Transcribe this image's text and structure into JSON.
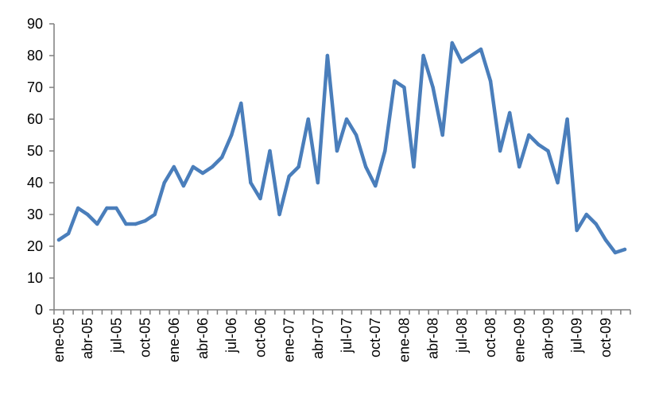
{
  "chart_data": {
    "type": "line",
    "title": "",
    "xlabel": "",
    "ylabel": "",
    "ylim": [
      0,
      90
    ],
    "yticks": [
      0,
      10,
      20,
      30,
      40,
      50,
      60,
      70,
      80,
      90
    ],
    "grid": false,
    "legend": "none",
    "line_color": "#4a7ebb",
    "axis_color": "#7f7f7f",
    "x_tick_labels": [
      "ene-05",
      "abr-05",
      "jul-05",
      "oct-05",
      "ene-06",
      "abr-06",
      "jul-06",
      "oct-06",
      "ene-07",
      "abr-07",
      "jul-07",
      "oct-07",
      "ene-08",
      "abr-08",
      "jul-08",
      "oct-08",
      "ene-09",
      "abr-09",
      "jul-09",
      "oct-09"
    ],
    "categories": [
      "ene-05",
      "feb-05",
      "mar-05",
      "abr-05",
      "may-05",
      "jun-05",
      "jul-05",
      "ago-05",
      "sep-05",
      "oct-05",
      "nov-05",
      "dic-05",
      "ene-06",
      "feb-06",
      "mar-06",
      "abr-06",
      "may-06",
      "jun-06",
      "jul-06",
      "ago-06",
      "sep-06",
      "oct-06",
      "nov-06",
      "dic-06",
      "ene-07",
      "feb-07",
      "mar-07",
      "abr-07",
      "may-07",
      "jun-07",
      "jul-07",
      "ago-07",
      "sep-07",
      "oct-07",
      "nov-07",
      "dic-07",
      "ene-08",
      "feb-08",
      "mar-08",
      "abr-08",
      "may-08",
      "jun-08",
      "jul-08",
      "ago-08",
      "sep-08",
      "oct-08",
      "nov-08",
      "dic-08",
      "ene-09",
      "feb-09",
      "mar-09",
      "abr-09",
      "may-09",
      "jun-09",
      "jul-09",
      "ago-09",
      "sep-09",
      "oct-09",
      "nov-09",
      "dic-09"
    ],
    "series": [
      {
        "values": [
          22,
          24,
          32,
          30,
          27,
          32,
          32,
          27,
          27,
          28,
          30,
          40,
          45,
          39,
          45,
          43,
          45,
          48,
          55,
          65,
          40,
          35,
          50,
          30,
          42,
          45,
          60,
          40,
          80,
          50,
          60,
          55,
          45,
          39,
          50,
          72,
          70,
          45,
          80,
          70,
          55,
          84,
          78,
          80,
          82,
          72,
          50,
          62,
          45,
          55,
          52,
          50,
          40,
          60,
          25,
          30,
          27,
          22,
          18,
          19
        ]
      }
    ]
  }
}
